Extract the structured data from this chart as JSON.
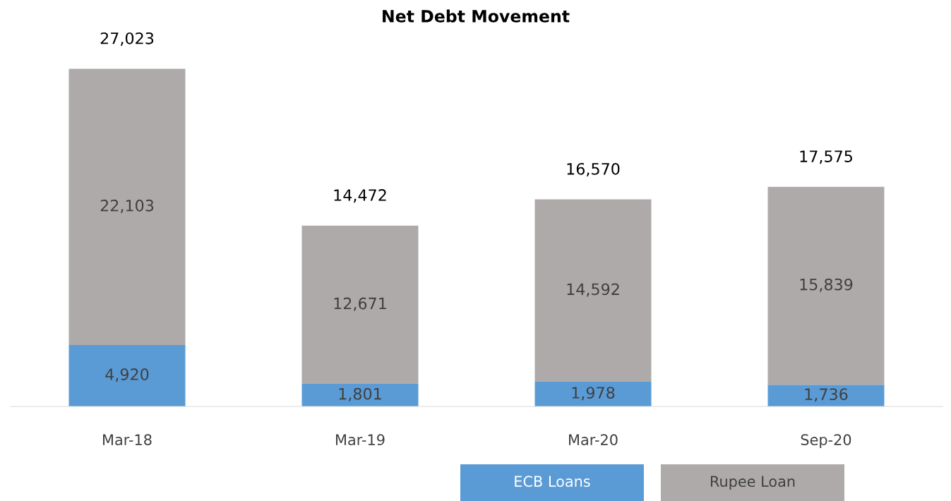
{
  "chart_data": {
    "type": "bar",
    "title": "Net Debt Movement",
    "categories": [
      "Mar-18",
      "Mar-19",
      "Mar-20",
      "Sep-20"
    ],
    "stacked": true,
    "legend": "bottom",
    "grid": false,
    "series": [
      {
        "name": "ECB Loans",
        "color": "#5b9bd5",
        "values": [
          4920,
          1801,
          1978,
          1736
        ],
        "value_labels": [
          "4,920",
          "1,801",
          "1,978",
          "1,736"
        ]
      },
      {
        "name": "Rupee Loan",
        "color": "#aeaaaa",
        "values": [
          22103,
          12671,
          14592,
          15839
        ],
        "value_labels": [
          "22,103",
          "12,671",
          "14,592",
          "15,839"
        ]
      }
    ],
    "totals": [
      "27,023",
      "14,472",
      "16,570",
      "17,575"
    ]
  }
}
